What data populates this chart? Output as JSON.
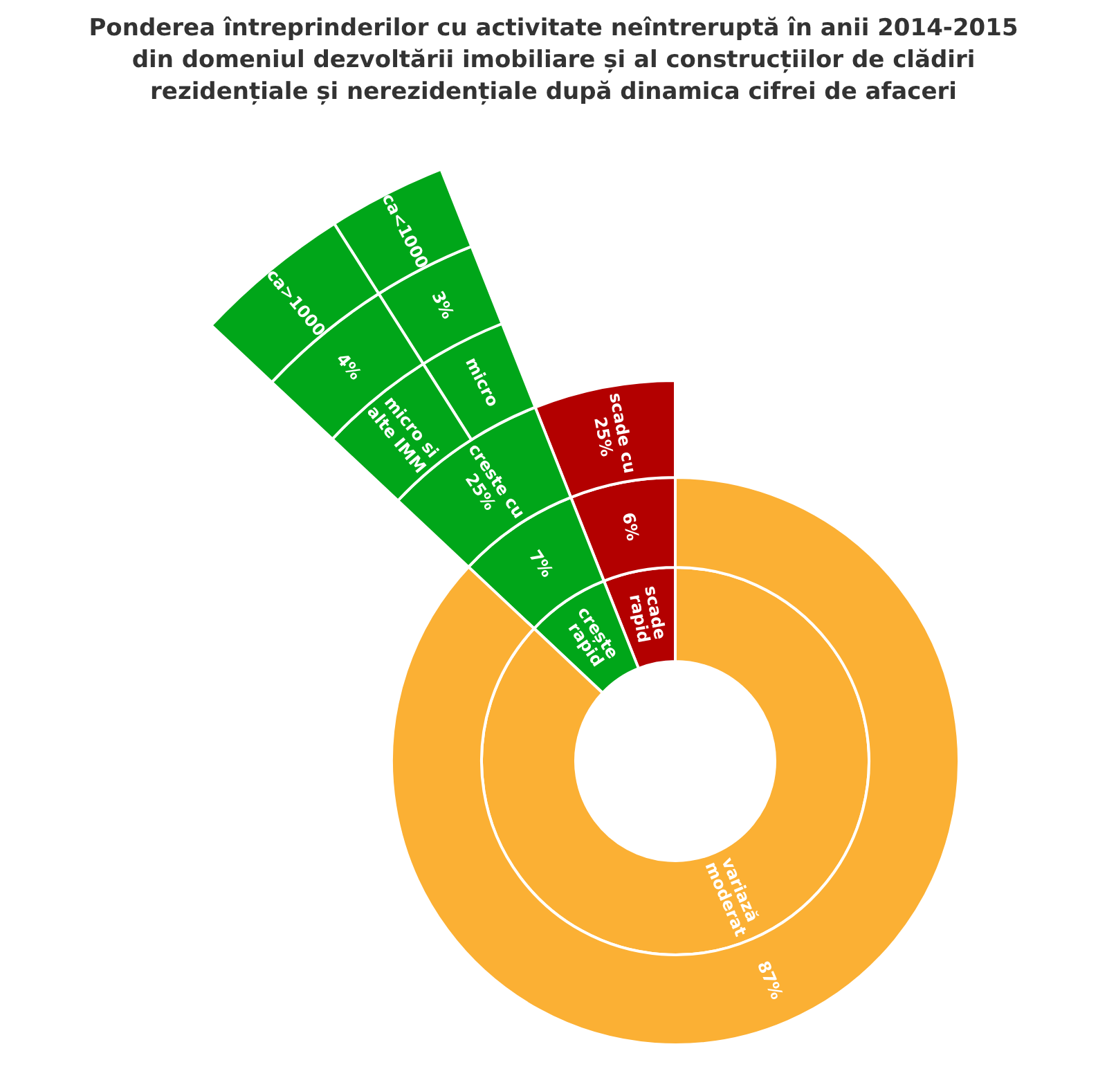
{
  "chart_data": {
    "type": "other",
    "title": "Ponderea întreprinderilor cu activitate neîntreruptă în anii 2014-2015\ndin domeniul dezvoltării imobiliare și al construcțiilor de clădiri\nrezidențiale și nerezidențiale după dinamica cifrei de afaceri",
    "categories": [
      "scade rapid",
      "crește rapid",
      "variază moderat"
    ],
    "series": [
      {
        "values": [
          6,
          7,
          87
        ],
        "colors": [
          "#b30000",
          "#00a619",
          "#fbb034"
        ],
        "value_labels": [
          "6%",
          "7%",
          "87%"
        ]
      },
      {
        "name": "micro",
        "color": "#00a619",
        "values": [
          null,
          3,
          null
        ],
        "value_labels": [
          null,
          "3%",
          null
        ]
      },
      {
        "name": "micro si alte IMM",
        "color": "#00a619",
        "values": [
          null,
          4,
          null
        ],
        "value_labels": [
          null,
          "4%",
          null
        ]
      }
    ],
    "annotations": [
      {
        "text": "scade cu 25%",
        "x": "scade rapid"
      },
      {
        "text": "creste cu 25%",
        "x": "crește rapid"
      },
      {
        "text": "ca<1000",
        "x": "micro"
      },
      {
        "text": "ca>1000",
        "x": "micro si alte IMM"
      }
    ]
  }
}
